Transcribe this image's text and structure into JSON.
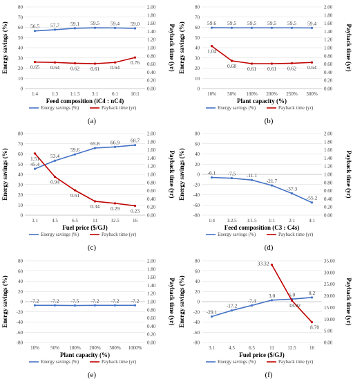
{
  "colors": {
    "energy": "#4472C4",
    "payback": "#C00000",
    "grid": "#D9D9D9",
    "axis": "#BFBFBF"
  },
  "chart_data": [
    {
      "panel": "(a)",
      "type": "line",
      "xlabel": "Feed composition (iC4 : nC4)",
      "ylabel": "Energy savings (%)",
      "y2label": "Payback time (yr)",
      "categories": [
        "1:4",
        "1:3",
        "1:1.5",
        "3:1",
        "6:1",
        "10:1"
      ],
      "ylim": [
        0,
        80
      ],
      "yticks": [
        "0",
        "10",
        "20",
        "30",
        "40",
        "50",
        "60",
        "70",
        "80"
      ],
      "y2lim": [
        0,
        2
      ],
      "y2ticks": [
        "0.00",
        "0.20",
        "0.40",
        "0.60",
        "0.80",
        "1.00",
        "1.20",
        "1.40",
        "1.60",
        "1.80",
        "2.00"
      ],
      "legend": [
        "Energy savings (%)",
        "Payback time (yr)"
      ],
      "series": [
        {
          "name": "Energy savings (%)",
          "axis": "left",
          "color": "#4472C4",
          "values": [
            56.5,
            57.7,
            59.1,
            59.5,
            59.4,
            59.0
          ],
          "labels": [
            "56.5",
            "57.7",
            "59.1",
            "59.5",
            "59.4",
            "59.0"
          ],
          "label_pos": "above"
        },
        {
          "name": "Payback time (yr)",
          "axis": "right",
          "color": "#C00000",
          "values": [
            0.65,
            0.64,
            0.62,
            0.61,
            0.64,
            0.76
          ],
          "labels": [
            "0.65",
            "0.64",
            "0.62",
            "0.61",
            "0.64",
            "0.76"
          ],
          "label_pos": "below"
        }
      ]
    },
    {
      "panel": "(b)",
      "type": "line",
      "xlabel": "Plant capacity (%)",
      "ylabel": "Energy savings (%)",
      "y2label": "Payback time (yr)",
      "categories": [
        "10%",
        "50%",
        "100%",
        "200%",
        "250%",
        "300%"
      ],
      "ylim": [
        0,
        80
      ],
      "yticks": [
        "0",
        "10",
        "20",
        "30",
        "40",
        "50",
        "60",
        "70",
        "80"
      ],
      "y2lim": [
        0,
        2
      ],
      "y2ticks": [
        "0.00",
        "0.20",
        "0.40",
        "0.60",
        "0.80",
        "1.00",
        "1.20",
        "1.40",
        "1.60",
        "1.80",
        "2.00"
      ],
      "legend": [
        "Energy savings (%)",
        "Payback time (yr)"
      ],
      "series": [
        {
          "name": "Energy savings (%)",
          "axis": "left",
          "color": "#4472C4",
          "values": [
            59.6,
            59.5,
            59.5,
            59.5,
            59.5,
            59.4
          ],
          "labels": [
            "59.6",
            "59.5",
            "59.5",
            "59.5",
            "59.5",
            "59.4"
          ],
          "label_pos": "above"
        },
        {
          "name": "Payback time (yr)",
          "axis": "right",
          "color": "#C00000",
          "values": [
            1.04,
            0.68,
            0.61,
            0.61,
            0.62,
            0.64
          ],
          "labels": [
            "1.04",
            "0.68",
            "0.61",
            "0.61",
            "0.62",
            "0.64"
          ],
          "label_pos": "below"
        }
      ]
    },
    {
      "panel": "(c)",
      "type": "line",
      "xlabel": "Fuel price ($/GJ)",
      "ylabel": "Energy savings (%)",
      "y2label": "Payback time (yr)",
      "categories": [
        "3.1",
        "4.5",
        "6.5",
        "11",
        "12.5",
        "16"
      ],
      "ylim": [
        0,
        80
      ],
      "yticks": [
        "0",
        "10",
        "20",
        "30",
        "40",
        "50",
        "60",
        "70",
        "80"
      ],
      "y2lim": [
        0,
        2
      ],
      "y2ticks": [
        "0.00",
        "0.20",
        "0.40",
        "0.60",
        "0.80",
        "1.00",
        "1.20",
        "1.40",
        "1.60",
        "1.80",
        "2.00"
      ],
      "legend": [
        "Energy savings (%)",
        "Payback time (yr)"
      ],
      "series": [
        {
          "name": "Energy savings (%)",
          "axis": "left",
          "color": "#4472C4",
          "values": [
            45.4,
            53.4,
            59.6,
            65.8,
            66.9,
            68.7
          ],
          "labels": [
            "45.4",
            "53.4",
            "59.6",
            "65.8",
            "66.9",
            "68.7"
          ],
          "label_pos": "above"
        },
        {
          "name": "Payback time (yr)",
          "axis": "right",
          "color": "#C00000",
          "values": [
            1.51,
            0.94,
            0.61,
            0.34,
            0.29,
            0.23
          ],
          "labels": [
            "1.51",
            "0.94",
            "0.61",
            "0.34",
            "0.29",
            "0.23"
          ],
          "label_pos": "below"
        }
      ]
    },
    {
      "panel": "(d)",
      "type": "line",
      "xlabel": "Feed composition (C3 : C4s)",
      "ylabel": "Energy savings (%)",
      "y2label": "Payback time (yr)",
      "categories": [
        "1:4",
        "1:2.5",
        "1:1.5",
        "1:1",
        "2:1",
        "4:1"
      ],
      "ylim": [
        -80,
        80
      ],
      "yticks": [
        "-80",
        "-60",
        "-40",
        "-20",
        "0",
        "20",
        "40",
        "60",
        "80"
      ],
      "y2lim": [
        0,
        2
      ],
      "y2ticks": [
        "0.00",
        "0.20",
        "0.40",
        "0.60",
        "0.80",
        "1.00",
        "1.20",
        "1.40",
        "1.60",
        "1.80",
        "2.00"
      ],
      "legend": [
        "Energy savings (%)",
        "Payback time (yr)"
      ],
      "series": [
        {
          "name": "Energy savings (%)",
          "axis": "left",
          "color": "#4472C4",
          "values": [
            -6.1,
            -7.5,
            -11.1,
            -21.7,
            -37.3,
            -55.2
          ],
          "labels": [
            "-6.1",
            "-7.5",
            "-11.1",
            "-21.7",
            "-37.3",
            "-55.2"
          ],
          "label_pos": "above"
        }
      ]
    },
    {
      "panel": "(e)",
      "type": "line",
      "xlabel": "Plant capacity (%)",
      "ylabel": "Energy savings (%)",
      "y2label": "Payback time (yr)",
      "categories": [
        "10%",
        "50%",
        "100%",
        "200%",
        "500%",
        "1000%"
      ],
      "ylim": [
        -80,
        80
      ],
      "yticks": [
        "-80",
        "-60",
        "-40",
        "-20",
        "0",
        "20",
        "40",
        "60",
        "80"
      ],
      "y2lim": [
        0,
        2
      ],
      "y2ticks": [
        "0.00",
        "0.20",
        "0.40",
        "0.60",
        "0.80",
        "1.00",
        "1.20",
        "1.40",
        "1.60",
        "1.80",
        "2.00"
      ],
      "legend": [
        "Energy savings (%)",
        "Payback time (yr)"
      ],
      "series": [
        {
          "name": "Energy savings (%)",
          "axis": "left",
          "color": "#4472C4",
          "values": [
            -7.2,
            -7.2,
            -7.5,
            -7.2,
            -7.2,
            -7.2
          ],
          "labels": [
            "-7.2",
            "-7.2",
            "-7.5",
            "-7.2",
            "-7.2",
            "-7.2"
          ],
          "label_pos": "above"
        }
      ]
    },
    {
      "panel": "(f)",
      "type": "line",
      "xlabel": "Fuel price ($/GJ)",
      "ylabel": "Energy savings (%)",
      "y2label": "Payback time (yr)",
      "categories": [
        "3.1",
        "4.5",
        "6.5",
        "11",
        "12.5",
        "16"
      ],
      "ylim": [
        -80,
        80
      ],
      "yticks": [
        "-80",
        "-60",
        "-40",
        "-20",
        "0",
        "20",
        "40",
        "60",
        "80"
      ],
      "y2lim": [
        0,
        35
      ],
      "y2ticks": [
        "0.00",
        "5.00",
        "10.00",
        "15.00",
        "20.00",
        "25.00",
        "30.00",
        "35.00"
      ],
      "legend": [
        "Energy savings (%)",
        "Payback time (yr)"
      ],
      "series": [
        {
          "name": "Energy savings (%)",
          "axis": "left",
          "color": "#4472C4",
          "values": [
            -29.1,
            -17.2,
            -7.4,
            3.0,
            5.0,
            8.2
          ],
          "labels": [
            "-29.1",
            "-17.2",
            "-7.4",
            "3.0",
            "5.0",
            "8.2"
          ],
          "label_pos": "above"
        },
        {
          "name": "Payback time (yr)",
          "axis": "right",
          "color": "#C00000",
          "values": [
            null,
            null,
            null,
            33.32,
            18.02,
            8.7
          ],
          "labels": [
            null,
            null,
            null,
            "33.32",
            "18.02",
            "8.70"
          ],
          "label_pos": "side"
        }
      ]
    }
  ]
}
